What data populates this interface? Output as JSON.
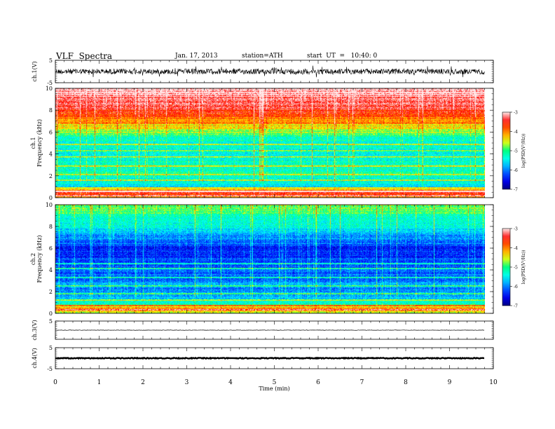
{
  "header": {
    "title": "VLF  Spectra",
    "date": "Jan. 17, 2013",
    "station": "station=ATH",
    "start": "start  UT  =   10:40: 0"
  },
  "chart_data": [
    {
      "type": "line",
      "name": "ch.1 waveform",
      "ylabel": "ch.1(V)",
      "ylim": [
        -5,
        5
      ],
      "yticks": [
        "5",
        "-5"
      ],
      "xlim": [
        0,
        10
      ],
      "signal": {
        "center": 0,
        "amplitude": 1.2,
        "end_min": 9.8
      }
    },
    {
      "type": "heatmap",
      "name": "ch.1 spectrogram",
      "ylabel_top": "ch.1",
      "ylabel": "Frequency  (kHz)",
      "ylim": [
        0,
        10
      ],
      "yticks": [
        "0",
        "2",
        "4",
        "6",
        "8",
        "10"
      ],
      "xlim": [
        0,
        10
      ],
      "colorbar": {
        "label": "log(PSD(V²/Hz))",
        "range": [
          -7,
          -3
        ],
        "ticks": [
          "-3",
          "-4",
          "-5",
          "-6",
          "-7"
        ]
      },
      "profile": [
        {
          "f": 0.0,
          "v": -4.2
        },
        {
          "f": 0.4,
          "v": -3.6
        },
        {
          "f": 0.6,
          "v": -3.2
        },
        {
          "f": 1.0,
          "v": -5.6
        },
        {
          "f": 2.0,
          "v": -5.3
        },
        {
          "f": 3.0,
          "v": -5.4
        },
        {
          "f": 4.0,
          "v": -5.5
        },
        {
          "f": 5.0,
          "v": -5.5
        },
        {
          "f": 5.8,
          "v": -5.1
        },
        {
          "f": 6.5,
          "v": -4.5
        },
        {
          "f": 7.5,
          "v": -3.9
        },
        {
          "f": 8.5,
          "v": -3.4
        },
        {
          "f": 10.0,
          "v": -3.1
        }
      ],
      "lines_khz": [
        0.2,
        0.6,
        0.9,
        1.6,
        2.1,
        2.9,
        3.7,
        4.3,
        4.9
      ]
    },
    {
      "type": "heatmap",
      "name": "ch.2 spectrogram",
      "ylabel_top": "ch.2",
      "ylabel": "Frequency  (kHz)",
      "ylim": [
        0,
        10
      ],
      "yticks": [
        "0",
        "2",
        "4",
        "6",
        "8",
        "10"
      ],
      "xlim": [
        0,
        10
      ],
      "colorbar": {
        "label": "log(PSD(V²/Hz))",
        "range": [
          -7,
          -3
        ],
        "ticks": [
          "-3",
          "-4",
          "-5",
          "-6",
          "-7"
        ]
      },
      "profile": [
        {
          "f": 0.0,
          "v": -4.6
        },
        {
          "f": 0.5,
          "v": -4.2
        },
        {
          "f": 1.0,
          "v": -5.4
        },
        {
          "f": 2.0,
          "v": -6.0
        },
        {
          "f": 3.0,
          "v": -6.1
        },
        {
          "f": 4.0,
          "v": -6.2
        },
        {
          "f": 5.0,
          "v": -6.3
        },
        {
          "f": 6.0,
          "v": -6.4
        },
        {
          "f": 7.0,
          "v": -6.0
        },
        {
          "f": 8.0,
          "v": -5.6
        },
        {
          "f": 9.0,
          "v": -5.2
        },
        {
          "f": 10.0,
          "v": -4.9
        }
      ],
      "lines_khz": [
        0.3,
        0.7,
        1.2,
        1.8,
        2.5,
        3.3,
        4.1,
        4.6
      ]
    },
    {
      "type": "line",
      "name": "ch.3 waveform",
      "ylabel": "ch.3(V)",
      "ylim": [
        -5,
        5
      ],
      "yticks": [
        "5"
      ],
      "xlim": [
        0,
        10
      ],
      "signal": {
        "center": 0,
        "amplitude": 0.1,
        "end_min": 9.8
      }
    },
    {
      "type": "line",
      "name": "ch.4 waveform",
      "ylabel": "ch.4(V)",
      "ylim": [
        -5,
        5
      ],
      "yticks": [
        "5",
        "-5"
      ],
      "xlim": [
        0,
        10
      ],
      "signal": {
        "center": 0,
        "amplitude": 0.2,
        "end_min": 9.8
      }
    }
  ],
  "xaxis": {
    "label": "Time  (min)",
    "ticks": [
      "0",
      "1",
      "2",
      "3",
      "4",
      "5",
      "6",
      "7",
      "8",
      "9",
      "10"
    ]
  }
}
